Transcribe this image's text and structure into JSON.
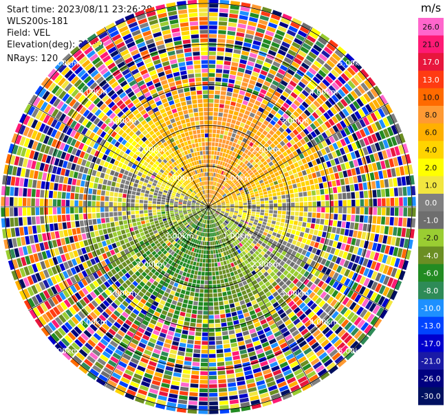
{
  "header": {
    "start_time": "Start time: 2023/08/11 23:26:28",
    "station": "WLS200s-181",
    "field": "Field: VEL",
    "elevation": "Elevation(deg): 35.30",
    "nrays": "NRays: 120"
  },
  "colorbar": {
    "unit": "m/s",
    "levels": [
      "26.0",
      "21.0",
      "17.0",
      "13.0",
      "10.0",
      "8.0",
      "6.0",
      "4.0",
      "2.0",
      "1.0",
      "0.0",
      "-1.0",
      "-2.0",
      "-4.0",
      "-6.0",
      "-8.0",
      "-10.0",
      "-13.0",
      "-17.0",
      "-21.0",
      "-26.0",
      "-30.0"
    ],
    "colors": [
      "#ff66cc",
      "#ff1a75",
      "#e8163d",
      "#ff3b12",
      "#ff6a00",
      "#ff9a33",
      "#ffb000",
      "#ffd400",
      "#ffff00",
      "#f2e63f",
      "#808080",
      "#6e6e6e",
      "#9acd32",
      "#6b8e23",
      "#228b22",
      "#2e8b57",
      "#1e90ff",
      "#0044ff",
      "#0000cd",
      "#1a1aa6",
      "#000080",
      "#001060"
    ]
  },
  "chart_data": {
    "type": "ppi",
    "field": "VEL",
    "units": "m/s",
    "nrays": 120,
    "elevation_deg": 35.3,
    "range_rings_km": [
      1.0,
      2.0,
      3.0,
      4.0,
      5.0
    ],
    "ring_labels": [
      "1.00km",
      "2.00km",
      "3.00km",
      "4.00km",
      "5.00km"
    ],
    "max_range_km": 5.1,
    "gate_count": 48,
    "spoke_angles_deg": [
      0,
      30,
      60,
      90,
      120,
      150,
      180,
      210,
      240,
      270,
      300,
      330
    ],
    "velocity_pattern": {
      "inner_field": "positive (yellow/orange) toward north, negative (green) toward south, ~0 (gray) along west-east axis",
      "far_range": "noisy/unfolded (random colors beyond ~2.8 km)"
    }
  }
}
